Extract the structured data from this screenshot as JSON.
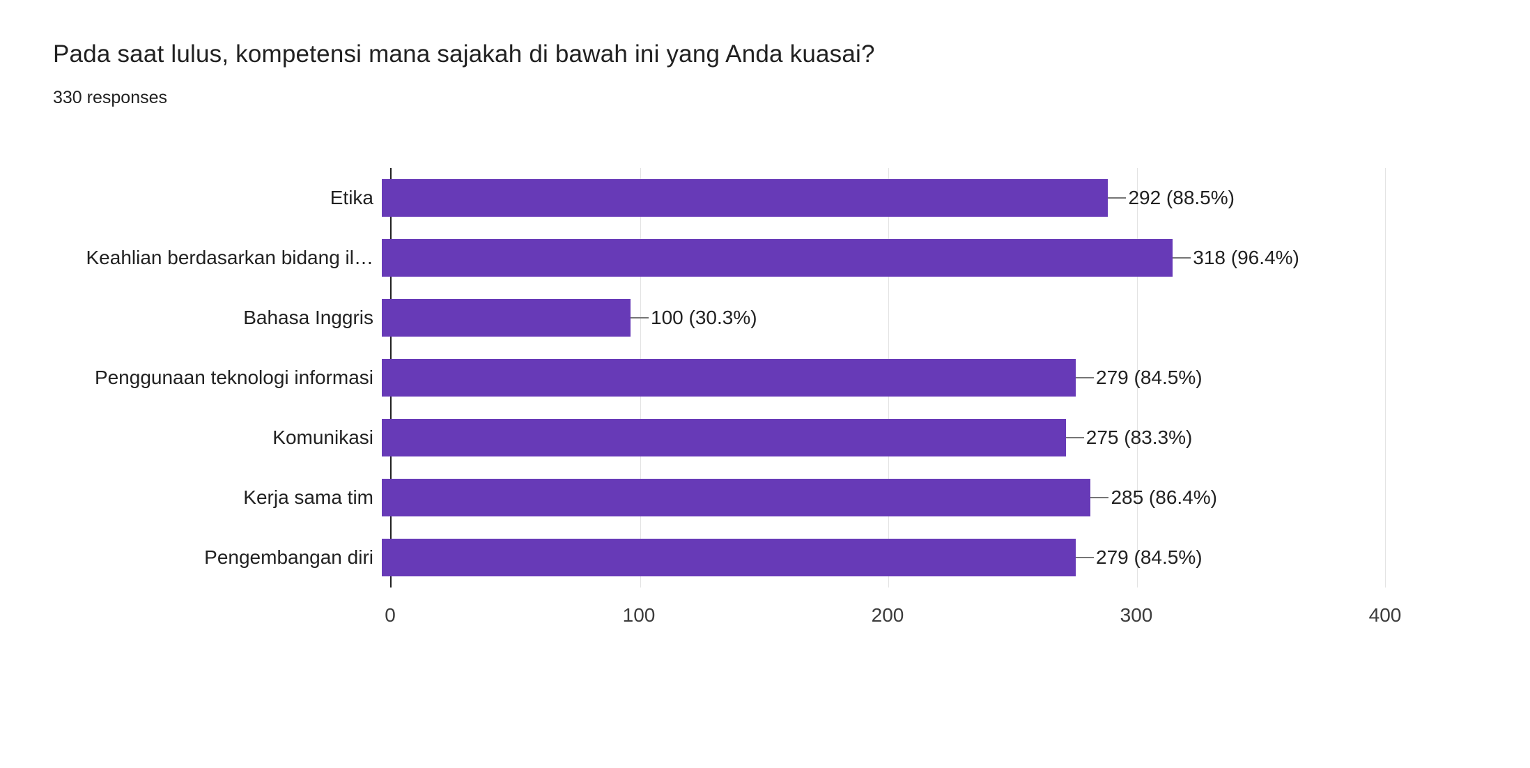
{
  "header": {
    "title": "Pada saat lulus, kompetensi mana sajakah di bawah ini yang Anda kuasai?",
    "responses": "330 responses"
  },
  "chart_data": {
    "type": "bar",
    "orientation": "horizontal",
    "title": "Pada saat lulus, kompetensi mana sajakah di bawah ini yang Anda kuasai?",
    "subtitle": "330 responses",
    "categories": [
      "Etika",
      "Keahlian berdasarkan bidang il…",
      "Bahasa Inggris",
      "Penggunaan teknologi informasi",
      "Komunikasi",
      "Kerja sama tim",
      "Pengembangan diri"
    ],
    "values": [
      292,
      318,
      100,
      279,
      275,
      285,
      279
    ],
    "value_labels": [
      "292 (88.5%)",
      "318 (96.4%)",
      "100 (30.3%)",
      "279 (84.5%)",
      "275 (83.3%)",
      "285 (86.4%)",
      "279 (84.5%)"
    ],
    "xlim": [
      0,
      400
    ],
    "x_ticks": [
      0,
      100,
      200,
      300,
      400
    ],
    "grid": true,
    "legend": "none",
    "colors": {
      "bar": "#673ab7",
      "gridline": "#e3e3e3",
      "axis_line": "#212121",
      "connector": "#757575",
      "text": "#212121"
    }
  }
}
